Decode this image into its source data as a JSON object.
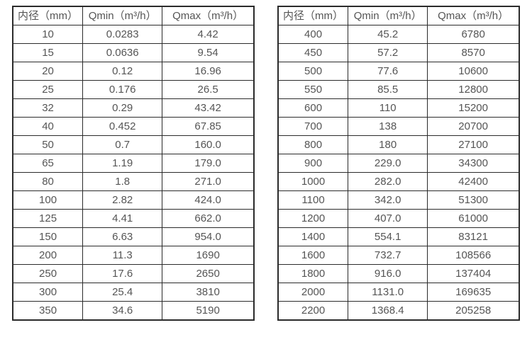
{
  "page": {
    "background": "#ffffff",
    "border_color": "#2b2b2b",
    "text_color": "#555555"
  },
  "tables": [
    {
      "name": "flow-table-left",
      "headers": [
        "内径（mm）",
        "Qmin（m³/h）",
        "Qmax（m³/h）"
      ],
      "rows": [
        [
          "10",
          "0.0283",
          "4.42"
        ],
        [
          "15",
          "0.0636",
          "9.54"
        ],
        [
          "20",
          "0.12",
          "16.96"
        ],
        [
          "25",
          "0.176",
          "26.5"
        ],
        [
          "32",
          "0.29",
          "43.42"
        ],
        [
          "40",
          "0.452",
          "67.85"
        ],
        [
          "50",
          "0.7",
          "160.0"
        ],
        [
          "65",
          "1.19",
          "179.0"
        ],
        [
          "80",
          "1.8",
          "271.0"
        ],
        [
          "100",
          "2.82",
          "424.0"
        ],
        [
          "125",
          "4.41",
          "662.0"
        ],
        [
          "150",
          "6.63",
          "954.0"
        ],
        [
          "200",
          "11.3",
          "1690"
        ],
        [
          "250",
          "17.6",
          "2650"
        ],
        [
          "300",
          "25.4",
          "3810"
        ],
        [
          "350",
          "34.6",
          "5190"
        ]
      ]
    },
    {
      "name": "flow-table-right",
      "headers": [
        "内径（mm）",
        "Qmin（m³/h）",
        "Qmax（m³/h）"
      ],
      "rows": [
        [
          "400",
          "45.2",
          "6780"
        ],
        [
          "450",
          "57.2",
          "8570"
        ],
        [
          "500",
          "77.6",
          "10600"
        ],
        [
          "550",
          "85.5",
          "12800"
        ],
        [
          "600",
          "110",
          "15200"
        ],
        [
          "700",
          "138",
          "20700"
        ],
        [
          "800",
          "180",
          "27100"
        ],
        [
          "900",
          "229.0",
          "34300"
        ],
        [
          "1000",
          "282.0",
          "42400"
        ],
        [
          "1100",
          "342.0",
          "51300"
        ],
        [
          "1200",
          "407.0",
          "61000"
        ],
        [
          "1400",
          "554.1",
          "83121"
        ],
        [
          "1600",
          "732.7",
          "108566"
        ],
        [
          "1800",
          "916.0",
          "137404"
        ],
        [
          "2000",
          "1131.0",
          "169635"
        ],
        [
          "2200",
          "1368.4",
          "205258"
        ]
      ]
    }
  ]
}
